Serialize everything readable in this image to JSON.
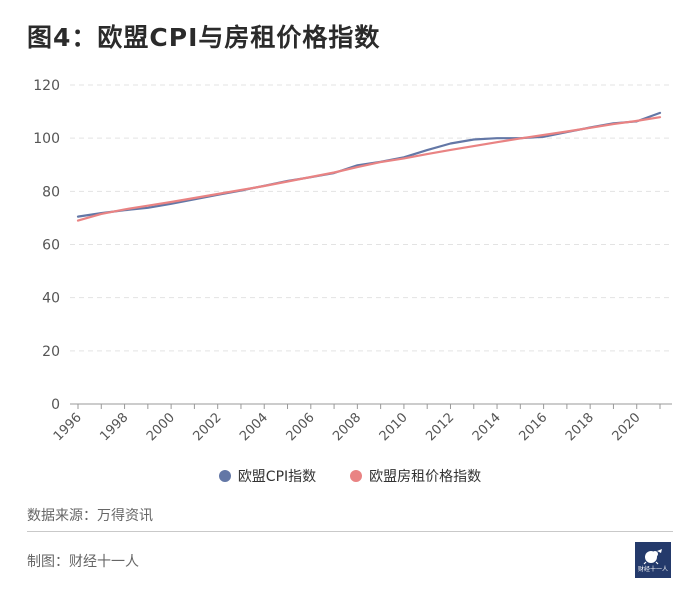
{
  "title": "图4：欧盟CPI与房租价格指数",
  "source_text": "数据来源：万得资讯",
  "maker_text": "制图：财经十一人",
  "logo_text": "财经十一人",
  "colors": {
    "cpi": "#6377a6",
    "rent": "#e98383",
    "grid": "#e3e3e3",
    "axis": "#999999"
  },
  "chart_data": {
    "type": "line",
    "title": "图4：欧盟CPI与房租价格指数",
    "xlabel": "",
    "ylabel": "",
    "xlim": [
      1996,
      2021
    ],
    "ylim": [
      0,
      120
    ],
    "y_ticks": [
      0,
      20,
      40,
      60,
      80,
      100,
      120
    ],
    "x_ticks": [
      "1996",
      "1998",
      "2000",
      "2002",
      "2004",
      "2006",
      "2008",
      "2010",
      "2012",
      "2014",
      "2016",
      "2018",
      "2020"
    ],
    "x": [
      1996,
      1997,
      1998,
      1999,
      2000,
      2001,
      2002,
      2003,
      2004,
      2005,
      2006,
      2007,
      2008,
      2009,
      2010,
      2011,
      2012,
      2013,
      2014,
      2015,
      2016,
      2017,
      2018,
      2019,
      2020,
      2021
    ],
    "grid": "horizontal dashed",
    "legend_position": "bottom",
    "series": [
      {
        "name": "欧盟CPI指数",
        "color": "#6377a6",
        "values": [
          70.5,
          71.8,
          72.9,
          73.8,
          75.3,
          77.0,
          78.7,
          80.3,
          82.1,
          83.9,
          85.3,
          86.9,
          89.8,
          91.1,
          92.8,
          95.5,
          98.0,
          99.5,
          100.0,
          100.0,
          100.5,
          102.3,
          104.0,
          105.6,
          106.3,
          109.5
        ]
      },
      {
        "name": "欧盟房租价格指数",
        "color": "#e98383",
        "values": [
          69.0,
          71.5,
          73.2,
          74.6,
          76.0,
          77.5,
          79.0,
          80.5,
          82.0,
          83.7,
          85.4,
          87.1,
          89.1,
          91.0,
          92.4,
          94.0,
          95.6,
          97.0,
          98.5,
          99.9,
          101.2,
          102.5,
          103.9,
          105.3,
          106.5,
          107.9
        ]
      }
    ]
  }
}
